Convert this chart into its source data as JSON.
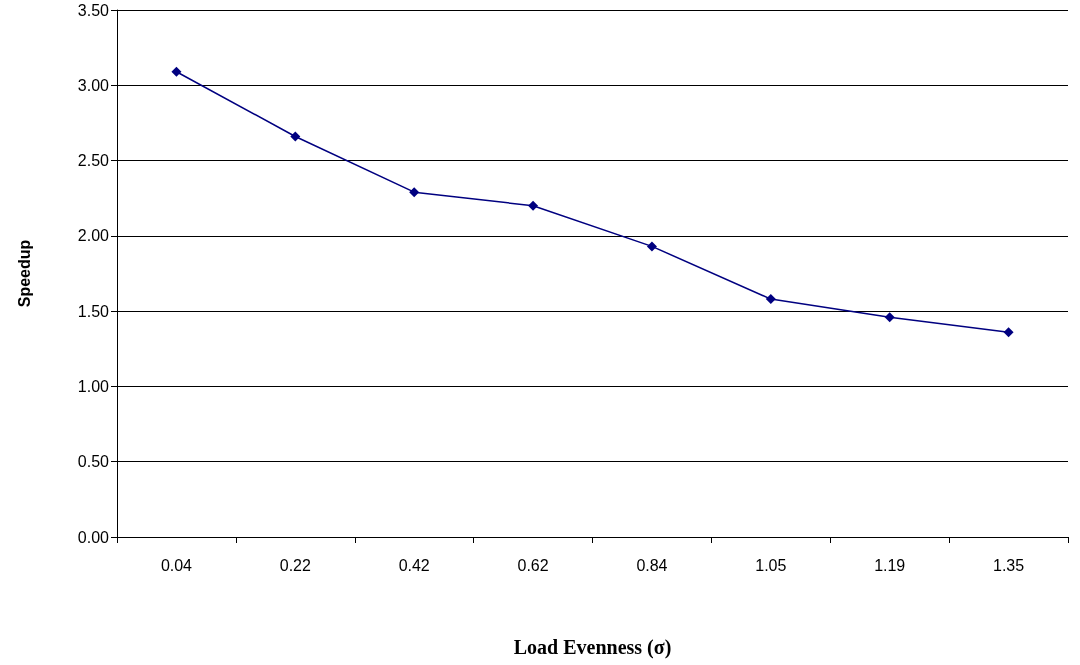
{
  "chart_data": {
    "type": "line",
    "xlabel": "Load Evenness (σ)",
    "ylabel": "Speedup",
    "categories": [
      "0.04",
      "0.22",
      "0.42",
      "0.62",
      "0.84",
      "1.05",
      "1.19",
      "1.35"
    ],
    "series": [
      {
        "color": "#000080",
        "values": [
          3.09,
          2.66,
          2.29,
          2.2,
          1.93,
          1.58,
          1.46,
          1.36
        ]
      }
    ],
    "ylim": [
      0,
      3.5
    ],
    "yticks": [
      {
        "value": 0,
        "label": "0.00"
      },
      {
        "value": 0.5,
        "label": "0.50"
      },
      {
        "value": 1,
        "label": "1.00"
      },
      {
        "value": 1.5,
        "label": "1.50"
      },
      {
        "value": 2,
        "label": "2.00"
      },
      {
        "value": 2.5,
        "label": "2.50"
      },
      {
        "value": 3,
        "label": "3.00"
      },
      {
        "value": 3.5,
        "label": "3.50"
      }
    ],
    "grid": "y",
    "marker": "diamond",
    "line_style": "solid"
  }
}
